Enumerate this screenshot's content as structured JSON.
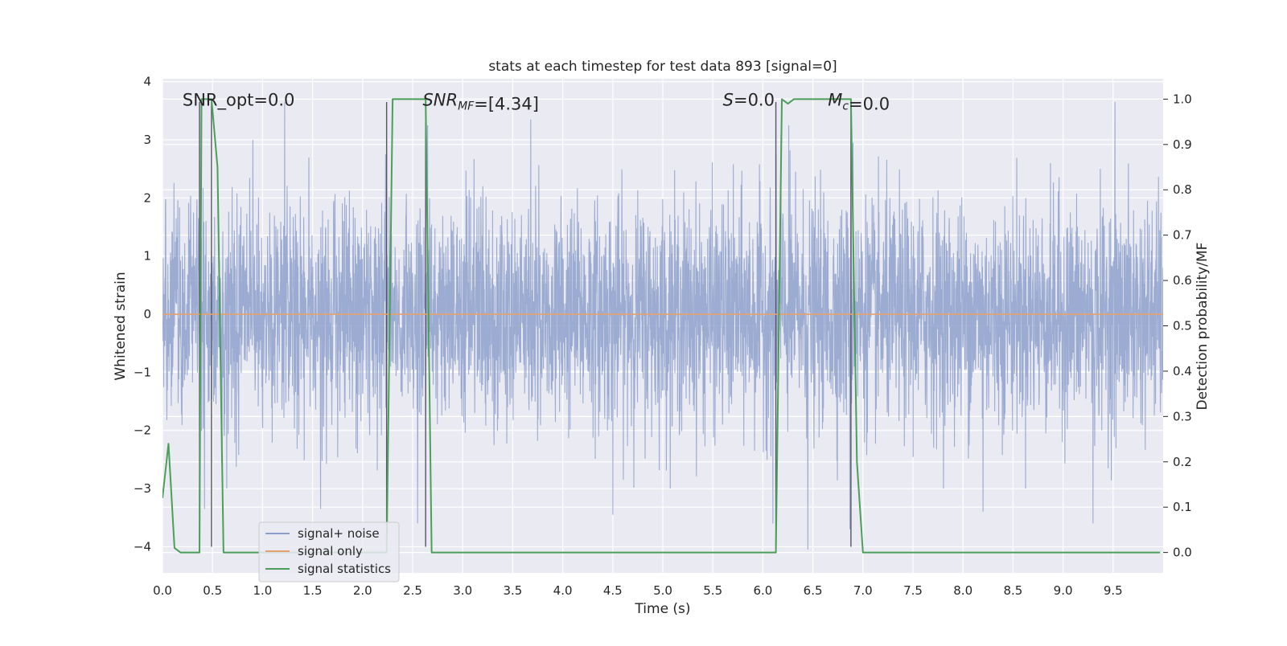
{
  "chart_data": {
    "type": "line",
    "title": "stats at each timestep for test data 893 [signal=0]",
    "xlabel": "Time (s)",
    "ylabel": "Whitened strain",
    "y2label": "Detection probability/MF",
    "xlim": [
      0.0,
      10.0
    ],
    "ylim": [
      -4.45,
      4.05
    ],
    "y2lim": [
      -0.045,
      1.045
    ],
    "xticks": [
      0.0,
      0.5,
      1.0,
      1.5,
      2.0,
      2.5,
      3.0,
      3.5,
      4.0,
      4.5,
      5.0,
      5.5,
      6.0,
      6.5,
      7.0,
      7.5,
      8.0,
      8.5,
      9.0,
      9.5
    ],
    "xtick_labels": [
      "0.0",
      "0.5",
      "1.0",
      "1.5",
      "2.0",
      "2.5",
      "3.0",
      "3.5",
      "4.0",
      "4.5",
      "5.0",
      "5.5",
      "6.0",
      "6.5",
      "7.0",
      "7.5",
      "8.0",
      "8.5",
      "9.0",
      "9.5"
    ],
    "yticks": [
      -4,
      -3,
      -2,
      -1,
      0,
      1,
      2,
      3,
      4
    ],
    "ytick_labels": [
      "−4",
      "−3",
      "−2",
      "−1",
      "0",
      "1",
      "2",
      "3",
      "4"
    ],
    "y2ticks": [
      0.0,
      0.1,
      0.2,
      0.3,
      0.4,
      0.5,
      0.6,
      0.7,
      0.8,
      0.9,
      1.0
    ],
    "y2tick_labels": [
      "0.0",
      "0.1",
      "0.2",
      "0.3",
      "0.4",
      "0.5",
      "0.6",
      "0.7",
      "0.8",
      "0.9",
      "1.0"
    ],
    "grid": true,
    "legend_position": "lower-left",
    "annotations": [
      {
        "parts": [
          {
            "t": "SNR_opt=0.0",
            "i": false
          }
        ],
        "x": 0.2,
        "y": 3.7
      },
      {
        "parts": [
          {
            "t": "SNR",
            "i": true
          },
          {
            "t": "MF",
            "i": true,
            "sub": true
          },
          {
            "t": "=[4.34]",
            "i": false
          }
        ],
        "x": 2.6,
        "y": 3.7
      },
      {
        "parts": [
          {
            "t": "S",
            "i": true
          },
          {
            "t": "=0.0",
            "i": false
          }
        ],
        "x": 5.6,
        "y": 3.7
      },
      {
        "parts": [
          {
            "t": "M",
            "i": true
          },
          {
            "t": "c",
            "i": true,
            "sub": true
          },
          {
            "t": "=0.0",
            "i": false
          }
        ],
        "x": 6.65,
        "y": 3.7
      }
    ],
    "vlines": [
      {
        "x": 0.37,
        "ymin": -4.0,
        "ymax": 3.65
      },
      {
        "x": 0.49,
        "ymin": -4.0,
        "ymax": 3.65
      },
      {
        "x": 2.24,
        "ymin": -4.0,
        "ymax": 3.65
      },
      {
        "x": 2.63,
        "ymin": -4.0,
        "ymax": 3.65
      },
      {
        "x": 6.13,
        "ymin": -4.0,
        "ymax": 3.65
      },
      {
        "x": 6.88,
        "ymin": -4.0,
        "ymax": 3.65
      }
    ],
    "series": [
      {
        "name": "signal+ noise",
        "axis": "left",
        "color": "#8da0cb",
        "description_only": true,
        "noise_sigma": 0.95,
        "noise_spikes": [
          {
            "x": 1.22,
            "y": 3.65
          },
          {
            "x": 2.23,
            "y": 2.75
          },
          {
            "x": 2.65,
            "y": 3.25
          },
          {
            "x": 3.68,
            "y": 3.35
          },
          {
            "x": 6.18,
            "y": 3.1
          },
          {
            "x": 6.26,
            "y": 3.25
          },
          {
            "x": 6.9,
            "y": 2.95
          },
          {
            "x": 9.52,
            "y": 3.65
          },
          {
            "x": 0.42,
            "y": -3.35
          },
          {
            "x": 1.58,
            "y": -3.35
          },
          {
            "x": 2.55,
            "y": -3.6
          },
          {
            "x": 4.5,
            "y": -3.45
          },
          {
            "x": 6.1,
            "y": -3.6
          },
          {
            "x": 6.45,
            "y": -4.05
          },
          {
            "x": 6.87,
            "y": -3.7
          },
          {
            "x": 8.2,
            "y": -3.4
          },
          {
            "x": 9.3,
            "y": -3.6
          }
        ]
      },
      {
        "name": "signal only",
        "axis": "left",
        "color": "#e5a170",
        "x": [
          0.0,
          10.0
        ],
        "y": [
          0.0,
          0.0
        ]
      },
      {
        "name": "signal statistics",
        "axis": "right",
        "color": "#4c9f5a",
        "x": [
          0.0,
          0.06,
          0.12,
          0.18,
          0.37,
          0.39,
          0.43,
          0.49,
          0.55,
          0.61,
          0.67,
          2.24,
          2.3,
          2.36,
          2.42,
          2.63,
          2.69,
          2.75,
          6.13,
          6.19,
          6.25,
          6.31,
          6.37,
          6.88,
          6.94,
          7.0,
          7.06,
          9.97
        ],
        "y": [
          0.12,
          0.24,
          0.01,
          0.0,
          0.0,
          1.0,
          1.0,
          1.0,
          0.85,
          0.0,
          0.0,
          0.0,
          1.0,
          1.0,
          1.0,
          1.0,
          0.0,
          0.0,
          0.0,
          1.0,
          0.99,
          1.0,
          1.0,
          1.0,
          0.2,
          0.0,
          0.0,
          0.0
        ]
      }
    ]
  }
}
